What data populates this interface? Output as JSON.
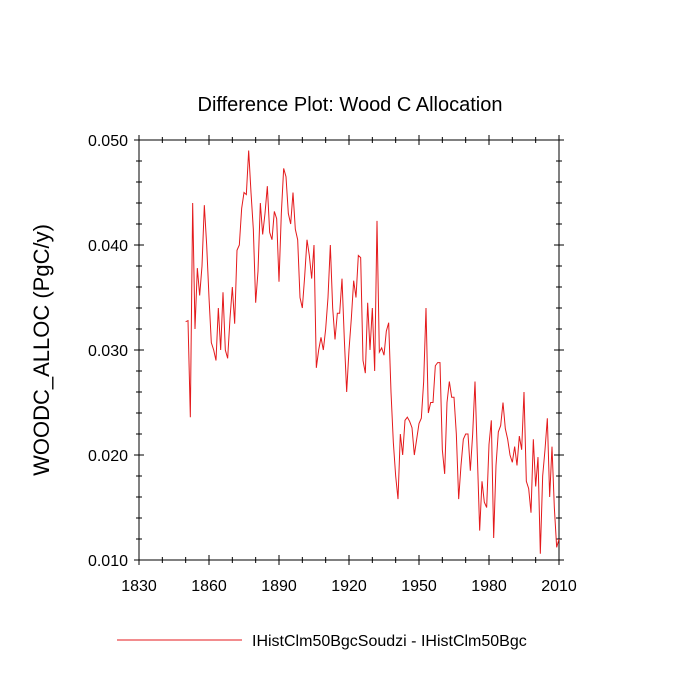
{
  "chart_data": {
    "type": "line",
    "title": "Difference Plot: Wood C Allocation",
    "xlabel": "",
    "ylabel": "WOODC_ALLOC  (PgC/y)",
    "xlim": [
      1830,
      2010
    ],
    "ylim": [
      0.01,
      0.05
    ],
    "xticks": [
      1830,
      1860,
      1890,
      1920,
      1950,
      1980,
      2010
    ],
    "xtick_labels": [
      "1830",
      "1860",
      "1890",
      "1920",
      "1950",
      "1980",
      "2010"
    ],
    "yticks": [
      0.01,
      0.02,
      0.03,
      0.04,
      0.05
    ],
    "ytick_labels": [
      "0.010",
      "0.020",
      "0.030",
      "0.040",
      "0.050"
    ],
    "grid": false,
    "legend_position": "bottom",
    "series": [
      {
        "name": "IHistClm50BgcSoudzi - IHistClm50Bgc",
        "color": "#e41a1c",
        "x": [
          1850,
          1851,
          1852,
          1853,
          1854,
          1855,
          1856,
          1857,
          1858,
          1859,
          1860,
          1861,
          1862,
          1863,
          1864,
          1865,
          1866,
          1867,
          1868,
          1869,
          1870,
          1871,
          1872,
          1873,
          1874,
          1875,
          1876,
          1877,
          1878,
          1879,
          1880,
          1881,
          1882,
          1883,
          1884,
          1885,
          1886,
          1887,
          1888,
          1889,
          1890,
          1891,
          1892,
          1893,
          1894,
          1895,
          1896,
          1897,
          1898,
          1899,
          1900,
          1901,
          1902,
          1903,
          1904,
          1905,
          1906,
          1907,
          1908,
          1909,
          1910,
          1911,
          1912,
          1913,
          1914,
          1915,
          1916,
          1917,
          1918,
          1919,
          1920,
          1921,
          1922,
          1923,
          1924,
          1925,
          1926,
          1927,
          1928,
          1929,
          1930,
          1931,
          1932,
          1933,
          1934,
          1935,
          1936,
          1937,
          1938,
          1939,
          1940,
          1941,
          1942,
          1943,
          1944,
          1945,
          1946,
          1947,
          1948,
          1949,
          1950,
          1951,
          1952,
          1953,
          1954,
          1955,
          1956,
          1957,
          1958,
          1959,
          1960,
          1961,
          1962,
          1963,
          1964,
          1965,
          1966,
          1967,
          1968,
          1969,
          1970,
          1971,
          1972,
          1973,
          1974,
          1975,
          1976,
          1977,
          1978,
          1979,
          1980,
          1981,
          1982,
          1983,
          1984,
          1985,
          1986,
          1987,
          1988,
          1989,
          1990,
          1991,
          1992,
          1993,
          1994,
          1995,
          1996,
          1997,
          1998,
          1999,
          2000,
          2001,
          2002,
          2003,
          2004,
          2005,
          2006,
          2007,
          2008,
          2009,
          2010
        ],
        "y": [
          0.0327,
          0.0328,
          0.0236,
          0.044,
          0.032,
          0.0378,
          0.0352,
          0.038,
          0.0438,
          0.04,
          0.035,
          0.0307,
          0.03,
          0.029,
          0.034,
          0.03,
          0.0355,
          0.03,
          0.0292,
          0.033,
          0.036,
          0.0325,
          0.0395,
          0.04,
          0.0435,
          0.045,
          0.0448,
          0.049,
          0.045,
          0.0415,
          0.0345,
          0.0375,
          0.044,
          0.041,
          0.043,
          0.0456,
          0.0412,
          0.0405,
          0.0432,
          0.0425,
          0.0365,
          0.043,
          0.0473,
          0.0465,
          0.043,
          0.042,
          0.045,
          0.0415,
          0.0405,
          0.035,
          0.034,
          0.037,
          0.0405,
          0.039,
          0.0368,
          0.04,
          0.0283,
          0.03,
          0.0312,
          0.03,
          0.032,
          0.035,
          0.04,
          0.034,
          0.031,
          0.0335,
          0.0335,
          0.0368,
          0.031,
          0.026,
          0.03,
          0.033,
          0.0366,
          0.035,
          0.039,
          0.0388,
          0.029,
          0.0278,
          0.0345,
          0.03,
          0.034,
          0.028,
          0.0423,
          0.0298,
          0.0302,
          0.0295,
          0.0318,
          0.0326,
          0.026,
          0.0212,
          0.018,
          0.0158,
          0.022,
          0.02,
          0.0233,
          0.0236,
          0.0232,
          0.0226,
          0.02,
          0.0215,
          0.023,
          0.0235,
          0.027,
          0.034,
          0.024,
          0.025,
          0.025,
          0.0285,
          0.0288,
          0.0288,
          0.0205,
          0.0182,
          0.025,
          0.027,
          0.0255,
          0.0255,
          0.022,
          0.0158,
          0.019,
          0.0215,
          0.022,
          0.022,
          0.0185,
          0.022,
          0.027,
          0.02,
          0.0128,
          0.0175,
          0.0155,
          0.015,
          0.021,
          0.0233,
          0.0121,
          0.019,
          0.0222,
          0.0228,
          0.025,
          0.0225,
          0.0215,
          0.02,
          0.0193,
          0.0208,
          0.019,
          0.0218,
          0.0205,
          0.026,
          0.0175,
          0.0168,
          0.0145,
          0.0215,
          0.017,
          0.0198,
          0.0106,
          0.018,
          0.0205,
          0.0235,
          0.016,
          0.0208,
          0.015,
          0.0112,
          0.012
        ]
      }
    ]
  }
}
